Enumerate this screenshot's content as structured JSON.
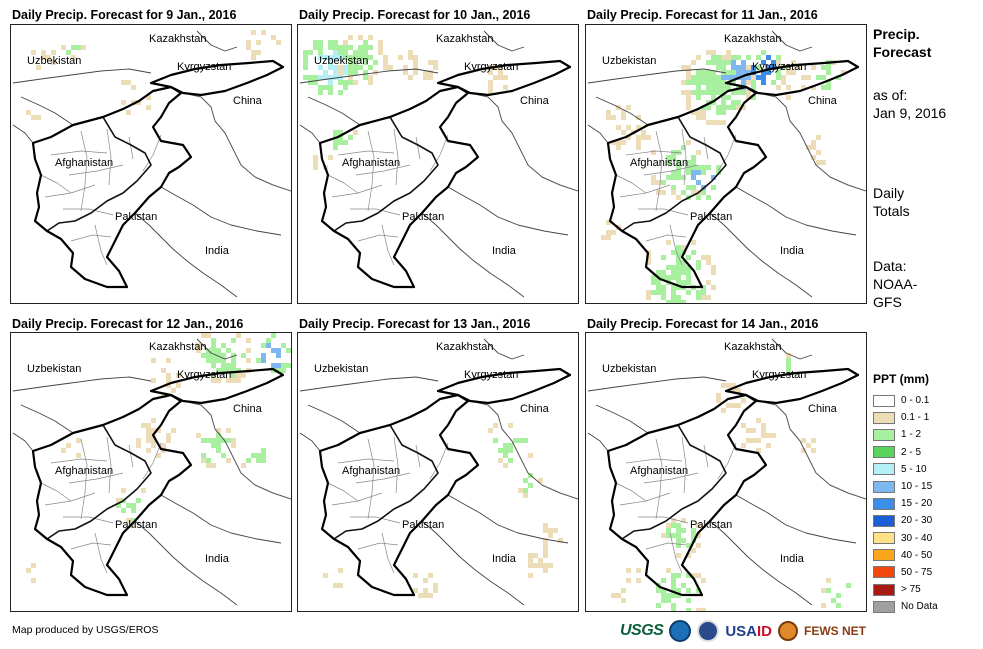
{
  "panels": [
    {
      "title": "Daily Precip. Forecast for 9 Jan., 2016"
    },
    {
      "title": "Daily Precip. Forecast for 10 Jan., 2016"
    },
    {
      "title": "Daily Precip. Forecast for 11 Jan., 2016"
    },
    {
      "title": "Daily Precip. Forecast for 12 Jan., 2016"
    },
    {
      "title": "Daily Precip. Forecast for 13 Jan., 2016"
    },
    {
      "title": "Daily Precip. Forecast for 14 Jan., 2016"
    }
  ],
  "map_labels": {
    "kazakhstan": "Kazakhstan",
    "uzbekistan": "Uzbekistan",
    "kyrgyzstan": "Kyrgyzstan",
    "china": "China",
    "afghanistan": "Afghanistan",
    "pakistan": "Pakistan",
    "india": "India"
  },
  "side": {
    "title_line1": "Precip.",
    "title_line2": "Forecast",
    "asof_line1": "as of:",
    "asof_line2": "Jan 9, 2016",
    "daily_line1": "Daily",
    "daily_line2": "Totals",
    "data_line1": "Data:",
    "data_line2": "NOAA-",
    "data_line3": "GFS"
  },
  "legend": {
    "title": "PPT (mm)",
    "items": [
      {
        "label": "0 - 0.1",
        "color": "#ffffff"
      },
      {
        "label": "0.1 - 1",
        "color": "#eddcb8"
      },
      {
        "label": "1 - 2",
        "color": "#a8efa0"
      },
      {
        "label": "2 - 5",
        "color": "#5bd45b"
      },
      {
        "label": "5 - 10",
        "color": "#b3eff5"
      },
      {
        "label": "10 - 15",
        "color": "#7fb8f0"
      },
      {
        "label": "15 - 20",
        "color": "#3c8ee8"
      },
      {
        "label": "20 - 30",
        "color": "#1c5ed6"
      },
      {
        "label": "30 - 40",
        "color": "#fde28a"
      },
      {
        "label": "40 - 50",
        "color": "#fba51c"
      },
      {
        "label": "50 - 75",
        "color": "#f2470f"
      },
      {
        "label": "> 75",
        "color": "#a81a12"
      },
      {
        "label": "No Data",
        "color": "#a0a0a0"
      }
    ]
  },
  "credit": "Map produced by USGS/EROS",
  "logos": {
    "usgs": "USGS",
    "usaid_a": "USA",
    "usaid_b": "ID",
    "fews": "FEWS NET"
  }
}
